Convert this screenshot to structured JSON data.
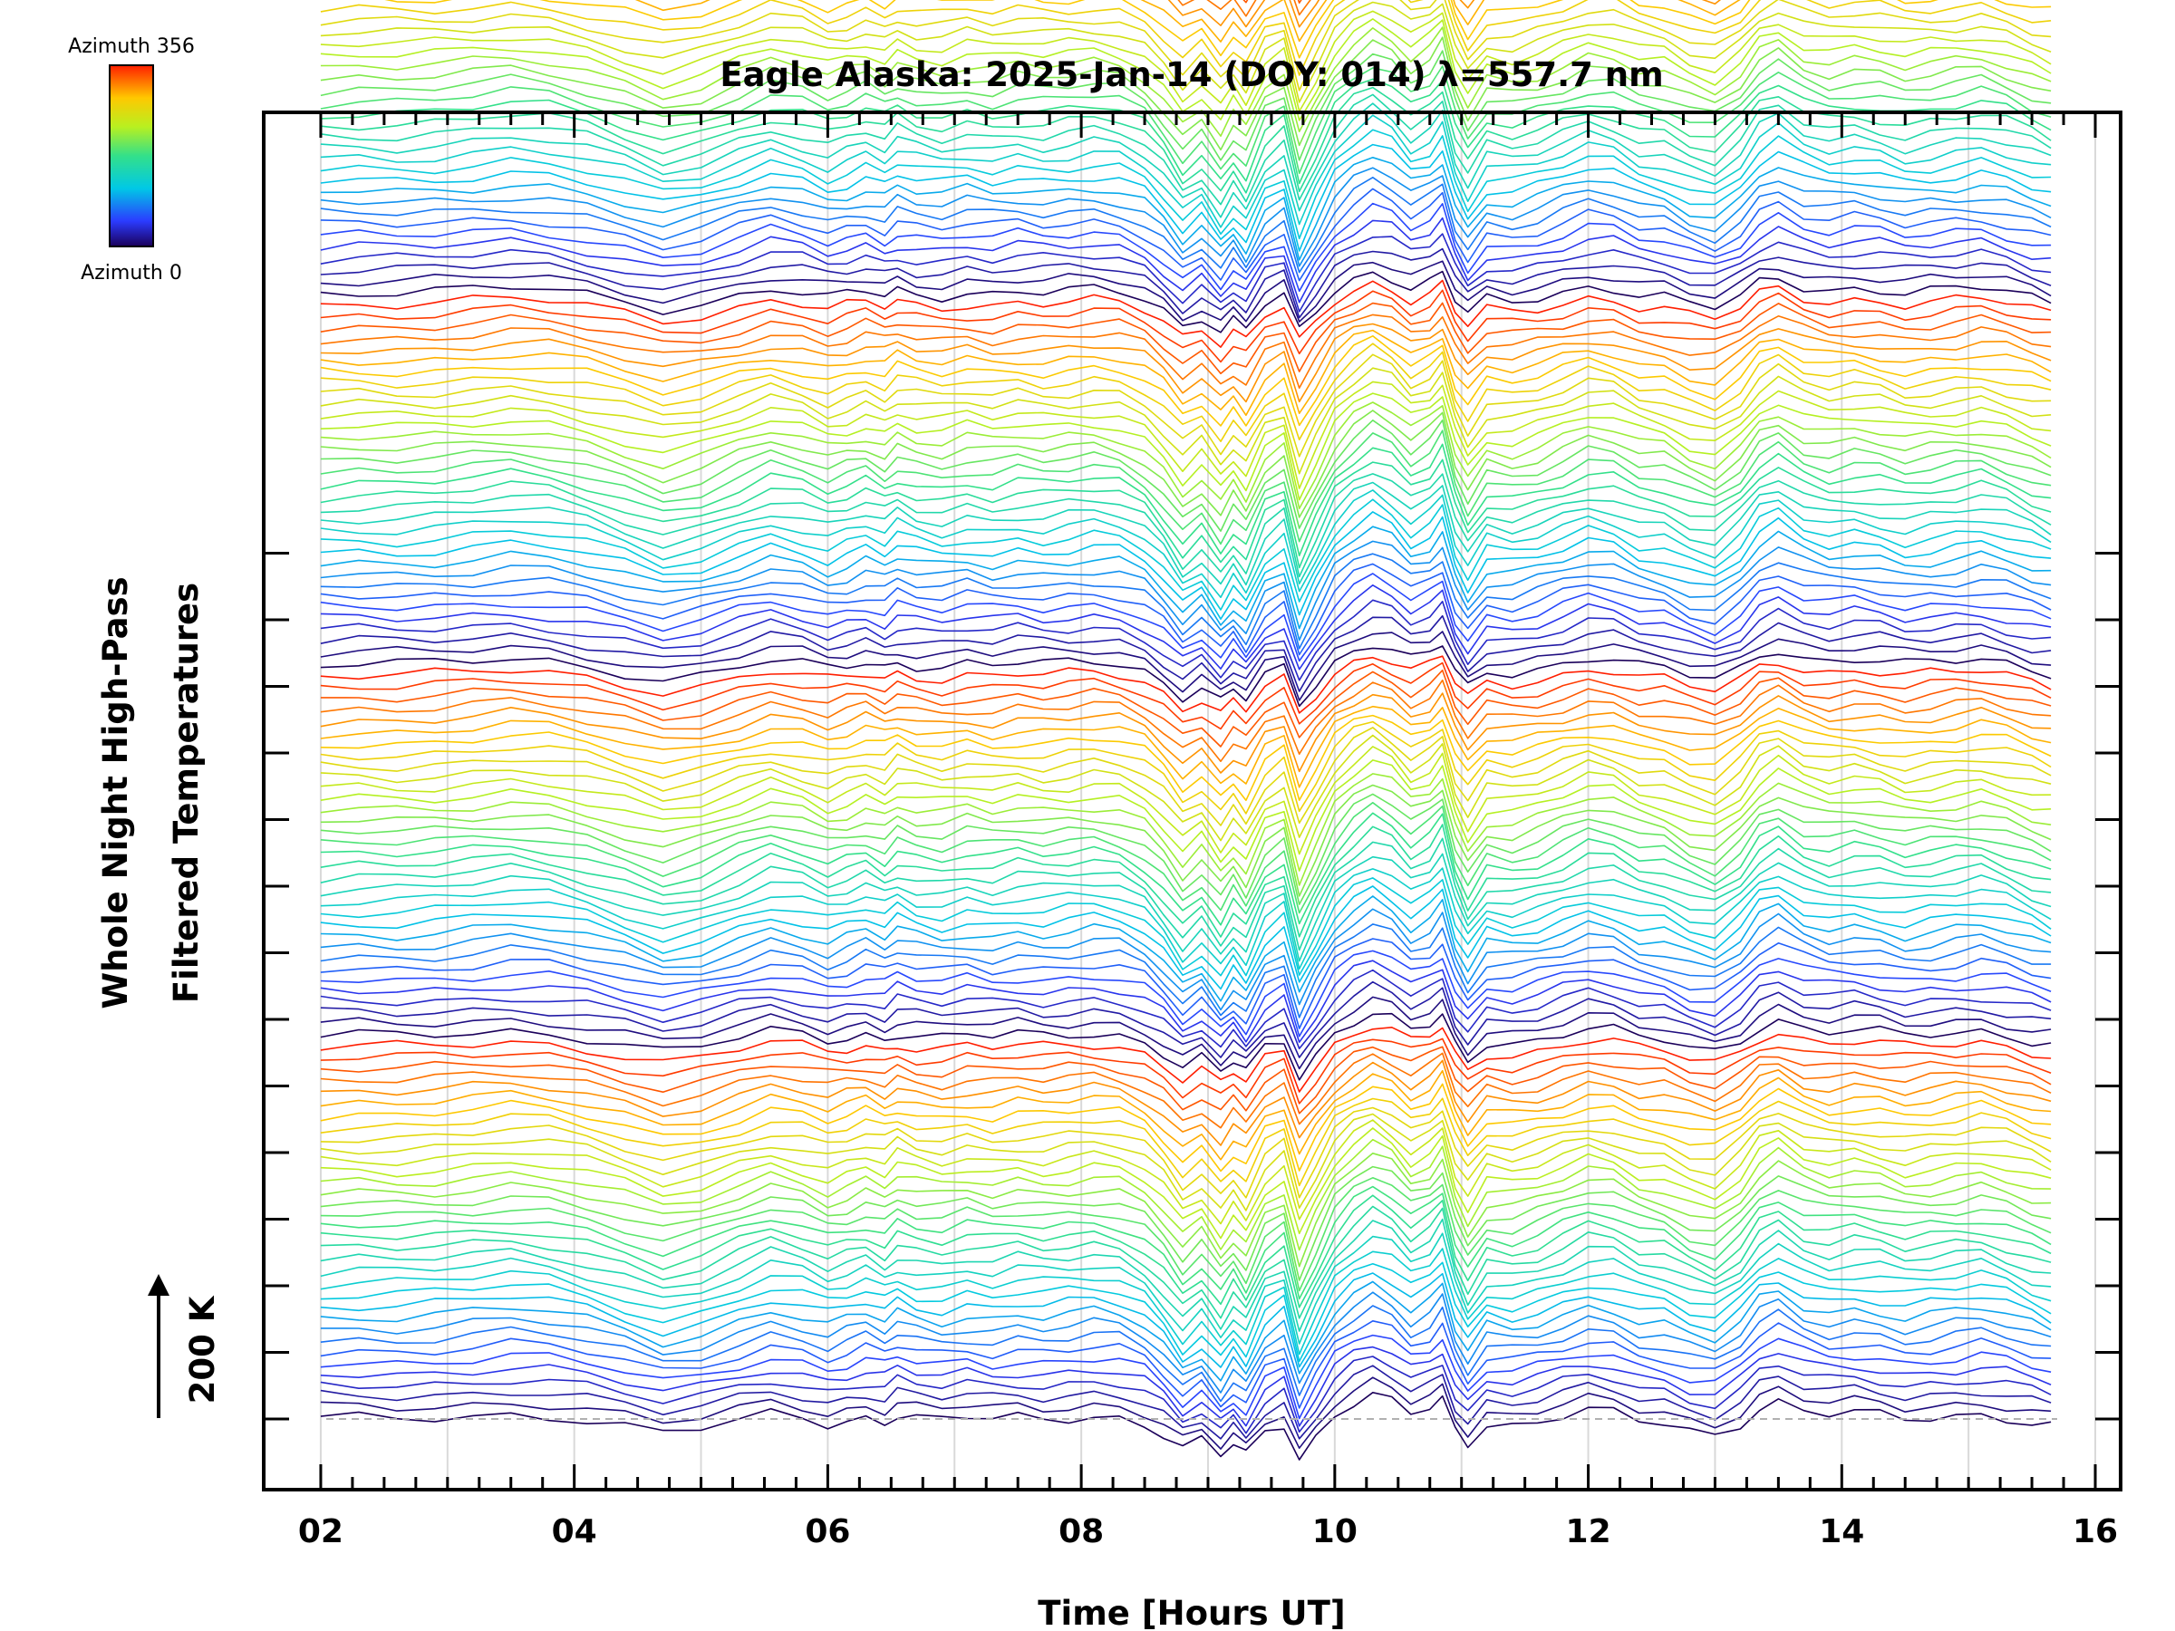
{
  "chart_data": {
    "type": "line",
    "title": "Eagle Alaska: 2025-Jan-14 (DOY: 014) λ=557.7 nm",
    "xlabel": "Time [Hours UT]",
    "ylabel_line1": "Whole Night High-Pass",
    "ylabel_line2": "Filtered Temperatures",
    "scale_label": "200 K",
    "xlim": [
      1.55,
      16.2
    ],
    "x_tick_labels": [
      "02",
      "04",
      "06",
      "08",
      "10",
      "12",
      "14",
      "16"
    ],
    "x_ticks": [
      2,
      4,
      6,
      8,
      10,
      12,
      14,
      16
    ],
    "colorbar": {
      "min_label": "Azimuth 0",
      "max_label": "Azimuth 356",
      "min": 0,
      "max": 356,
      "colormap": "rainbow"
    },
    "gridlines": {
      "vertical_every_hours": 1,
      "color": "#d9d9d9"
    },
    "baseline_dashed": true,
    "x": [
      2.0,
      2.3,
      2.6,
      2.9,
      3.2,
      3.5,
      3.8,
      4.1,
      4.4,
      4.7,
      5.0,
      5.3,
      5.55,
      5.8,
      6.0,
      6.15,
      6.3,
      6.45,
      6.55,
      6.7,
      6.9,
      7.1,
      7.3,
      7.5,
      7.7,
      7.9,
      8.1,
      8.3,
      8.5,
      8.65,
      8.8,
      8.95,
      9.1,
      9.2,
      9.3,
      9.45,
      9.6,
      9.72,
      9.85,
      10.0,
      10.15,
      10.3,
      10.45,
      10.6,
      10.75,
      10.85,
      10.95,
      11.05,
      11.2,
      11.4,
      11.6,
      11.8,
      12.0,
      12.2,
      12.4,
      12.6,
      12.8,
      13.0,
      13.2,
      13.35,
      13.5,
      13.7,
      13.9,
      14.1,
      14.3,
      14.5,
      14.7,
      14.9,
      15.1,
      15.3,
      15.5,
      15.65
    ],
    "anomaly_profile_K": [
      0,
      4,
      2,
      8,
      18,
      30,
      20,
      -5,
      -40,
      -80,
      -55,
      -10,
      25,
      5,
      -25,
      -8,
      12,
      -12,
      20,
      0,
      -10,
      8,
      -4,
      10,
      2,
      10,
      18,
      8,
      -30,
      -90,
      -170,
      -120,
      -200,
      -140,
      -190,
      -60,
      -20,
      -210,
      -100,
      20,
      80,
      120,
      90,
      30,
      60,
      110,
      -40,
      -120,
      -30,
      -40,
      -20,
      10,
      40,
      30,
      -10,
      -20,
      -60,
      -80,
      -20,
      60,
      90,
      40,
      20,
      30,
      20,
      0,
      10,
      20,
      30,
      10,
      -20,
      -40
    ],
    "n_profiles": 194,
    "groups": 6,
    "profiles_per_group": [
      34,
      33,
      33,
      33,
      33,
      28
    ],
    "offset_between_profiles_K": 16.9,
    "scale_bar_K": 200
  }
}
